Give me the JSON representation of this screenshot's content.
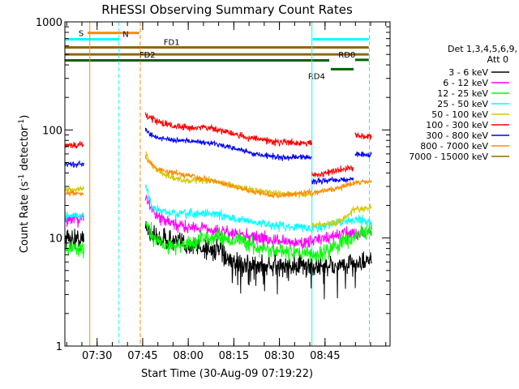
{
  "chart_data": {
    "type": "line",
    "title": "RHESSI Observing Summary Count Rates",
    "xlabel": "Start Time (30-Aug-09 07:19:22)",
    "ylabel_main": "Count Rate (s",
    "ylabel_sup1": "-1",
    "ylabel_mid": " detector",
    "ylabel_sup2": "-1",
    "ylabel_end": ")",
    "y_scale": "log",
    "ylim": [
      1,
      1000
    ],
    "xlim_minutes": [
      0,
      107
    ],
    "y_ticks": [
      {
        "value": 1,
        "label": "1"
      },
      {
        "value": 10,
        "label": "10"
      },
      {
        "value": 100,
        "label": "100"
      },
      {
        "value": 1000,
        "label": "1000"
      }
    ],
    "x_ticks": [
      {
        "t": 10.6,
        "label": "07:30"
      },
      {
        "t": 25.6,
        "label": "07:45"
      },
      {
        "t": 40.6,
        "label": "08:00"
      },
      {
        "t": 55.6,
        "label": "08:15"
      },
      {
        "t": 70.6,
        "label": "08:30"
      },
      {
        "t": 85.6,
        "label": "08:45"
      }
    ],
    "legend": {
      "position": "right",
      "header1": "Det 1,3,4,5,6,9,",
      "header2": "Att 0",
      "entries": [
        {
          "label": "3 - 6 keV",
          "color": "#000000"
        },
        {
          "label": "6 - 12 keV",
          "color": "#ff00ff"
        },
        {
          "label": "12 - 25 keV",
          "color": "#00ff00"
        },
        {
          "label": "25 - 50 keV",
          "color": "#00ffff"
        },
        {
          "label": "50 - 100 keV",
          "color": "#d4c800"
        },
        {
          "label": "100 - 300 keV",
          "color": "#ff0000"
        },
        {
          "label": "300 - 800 keV",
          "color": "#0000ff"
        },
        {
          "label": "800 - 7000 keV",
          "color": "#ff8c00"
        },
        {
          "label": "7000 - 15000 keV",
          "color": "#8b6914"
        }
      ]
    },
    "flags": [
      {
        "label": "S",
        "color": "#ff8c00",
        "t0": 7.5,
        "t1": 24.5,
        "y": 790,
        "label_t": 4.5
      },
      {
        "label": "N",
        "color": "#00ffff",
        "t0": 0,
        "t1": 18,
        "y": 690,
        "label_t": 19
      },
      {
        "label": "N",
        "color": "#00ffff",
        "t0": 81.5,
        "t1": 100,
        "y": 690,
        "label_t": null
      },
      {
        "label": "FD1",
        "color": "#8b6914",
        "t0": 0,
        "t1": 100,
        "y": 580,
        "label_t": 32.5
      },
      {
        "label": "FD2",
        "color": "#8b6914",
        "t0": 0,
        "t1": 100,
        "y": 500,
        "label_t": 24.5
      },
      {
        "label": "RD0",
        "color": "#006400",
        "t0": 95.5,
        "t1": 100,
        "y": 445,
        "label_t": 90
      },
      {
        "label": "RD4",
        "color": "#006400",
        "t0": 0,
        "t1": 87,
        "y": 440,
        "label_t": null
      },
      {
        "label": "RD4",
        "color": "#006400",
        "t0": 87.5,
        "t1": 95,
        "y": 365,
        "label_t": 80
      }
    ],
    "vlines": [
      {
        "t": 8.2,
        "color": "#ff8c00",
        "style": "solid"
      },
      {
        "t": 17.8,
        "color": "#00ffff",
        "style": "dashed"
      },
      {
        "t": 24.8,
        "color": "#ff8c00",
        "style": "dashed"
      },
      {
        "t": 81.3,
        "color": "#00ffff",
        "style": "solid"
      },
      {
        "t": 100.2,
        "color": "#00ffff",
        "style": "dashed"
      }
    ],
    "series": [
      {
        "name": "3 - 6 keV",
        "color": "#000000",
        "noise": 0.1,
        "segments": [
          [
            [
              0,
              10
            ],
            [
              6.3,
              9.5
            ]
          ],
          [
            [
              26.5,
              13
            ],
            [
              30,
              10
            ],
            [
              38,
              9
            ],
            [
              46,
              8
            ],
            [
              52,
              7.5
            ],
            [
              54,
              6
            ],
            [
              62,
              5.5
            ],
            [
              70,
              5.5
            ],
            [
              82,
              5.5
            ],
            [
              88,
              5.5
            ],
            [
              96,
              5.8
            ],
            [
              101,
              6
            ]
          ]
        ]
      },
      {
        "name": "6 - 12 keV",
        "color": "#ff00ff",
        "noise": 0.06,
        "segments": [
          [
            [
              0,
              15
            ],
            [
              6.3,
              15
            ]
          ],
          [
            [
              26.5,
              24
            ],
            [
              30,
              16
            ],
            [
              36,
              13
            ],
            [
              46,
              12.5
            ],
            [
              50,
              11.5
            ],
            [
              56,
              11
            ],
            [
              64,
              10
            ],
            [
              72,
              9.2
            ],
            [
              78,
              9
            ],
            [
              82,
              9.5
            ],
            [
              86,
              10
            ],
            [
              92,
              11
            ],
            [
              97,
              11
            ],
            [
              101,
              11.5
            ]
          ]
        ]
      },
      {
        "name": "12 - 25 keV",
        "color": "#00ff00",
        "noise": 0.07,
        "segments": [
          [
            [
              0,
              8
            ],
            [
              6.3,
              8
            ]
          ],
          [
            [
              26.5,
              15
            ],
            [
              29,
              10
            ],
            [
              33,
              8.5
            ],
            [
              40,
              8.5
            ],
            [
              46,
              10
            ],
            [
              52,
              10
            ],
            [
              58,
              9.5
            ],
            [
              64,
              8
            ],
            [
              70,
              7.5
            ],
            [
              82,
              7
            ],
            [
              86,
              7.5
            ],
            [
              92,
              9.5
            ],
            [
              97,
              11
            ],
            [
              101,
              11.5
            ]
          ]
        ]
      },
      {
        "name": "25 - 50 keV",
        "color": "#00ffff",
        "noise": 0.04,
        "segments": [
          [
            [
              0,
              16
            ],
            [
              6.3,
              16
            ]
          ],
          [
            [
              26.5,
              30
            ],
            [
              29,
              19
            ],
            [
              34,
              17
            ],
            [
              40,
              16.5
            ],
            [
              48,
              17
            ],
            [
              54,
              15.5
            ],
            [
              62,
              14
            ],
            [
              70,
              13
            ],
            [
              80,
              12.5
            ],
            [
              84,
              12.5
            ],
            [
              90,
              14
            ],
            [
              97,
              15
            ],
            [
              101,
              14
            ]
          ]
        ]
      },
      {
        "name": "50 - 100 keV",
        "color": "#d4c800",
        "noise": 0.03,
        "segments": [
          [
            [
              0,
              28
            ],
            [
              6.3,
              28
            ]
          ],
          [
            [
              26.5,
              60
            ],
            [
              29,
              45
            ],
            [
              34,
              37
            ],
            [
              40,
              34
            ],
            [
              48,
              34
            ],
            [
              54,
              31
            ],
            [
              62,
              28
            ],
            [
              70,
              26
            ],
            [
              81.3,
              25
            ]
          ],
          [
            [
              81.3,
              13
            ],
            [
              90,
              14
            ],
            [
              95,
              18
            ],
            [
              101,
              19
            ]
          ]
        ]
      },
      {
        "name": "100 - 300 keV",
        "color": "#ff0000",
        "noise": 0.03,
        "segments": [
          [
            [
              0,
              72
            ],
            [
              6.3,
              72
            ]
          ],
          [
            [
              26.5,
              140
            ],
            [
              30,
              120
            ],
            [
              36,
              108
            ],
            [
              42,
              105
            ],
            [
              48,
              105
            ],
            [
              54,
              95
            ],
            [
              60,
              85
            ],
            [
              70,
              77
            ],
            [
              81.3,
              76
            ]
          ],
          [
            [
              81.3,
              38
            ],
            [
              86,
              40
            ],
            [
              95,
              45
            ]
          ],
          [
            [
              95.5,
              88
            ],
            [
              101,
              88
            ]
          ]
        ]
      },
      {
        "name": "300 - 800 keV",
        "color": "#0000ff",
        "noise": 0.025,
        "segments": [
          [
            [
              0,
              48
            ],
            [
              6.3,
              48
            ]
          ],
          [
            [
              26.5,
              100
            ],
            [
              30,
              85
            ],
            [
              36,
              80
            ],
            [
              42,
              78
            ],
            [
              48,
              76
            ],
            [
              54,
              70
            ],
            [
              62,
              60
            ],
            [
              70,
              56
            ],
            [
              81.3,
              56
            ]
          ],
          [
            [
              81.3,
              33
            ],
            [
              86,
              34
            ],
            [
              95,
              35
            ]
          ],
          [
            [
              95.5,
              60
            ],
            [
              101,
              58
            ]
          ]
        ]
      },
      {
        "name": "800 - 7000 keV",
        "color": "#ff8c00",
        "noise": 0.025,
        "segments": [
          [
            [
              0,
              26
            ],
            [
              6.3,
              26
            ]
          ],
          [
            [
              26.5,
              55
            ],
            [
              30,
              44
            ],
            [
              36,
              40
            ],
            [
              42,
              37
            ],
            [
              48,
              34
            ],
            [
              54,
              31
            ],
            [
              62,
              27
            ],
            [
              70,
              24.5
            ],
            [
              81.3,
              27
            ]
          ],
          [
            [
              81.3,
              26
            ],
            [
              90,
              29
            ],
            [
              96,
              33
            ],
            [
              101,
              33
            ]
          ]
        ]
      }
    ]
  }
}
